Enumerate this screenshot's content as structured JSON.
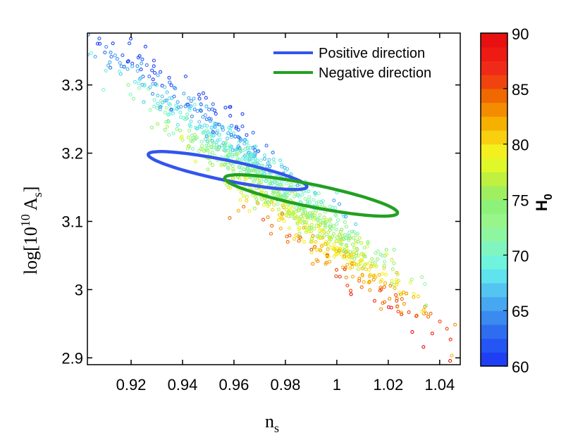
{
  "chart_data": {
    "type": "scatter",
    "title": "",
    "xlabel": "n",
    "xlabel_sub": "s",
    "ylabel_prefix": "log[10",
    "ylabel_sup": "10",
    "ylabel_main": " A",
    "ylabel_sub": "s",
    "ylabel_suffix": "]",
    "xlim": [
      0.903,
      1.048
    ],
    "ylim": [
      2.89,
      3.376
    ],
    "xticks": [
      0.92,
      0.94,
      0.96,
      0.98,
      1,
      1.02,
      1.04
    ],
    "xtick_labels": [
      "0.92",
      "0.94",
      "0.96",
      "0.98",
      "1",
      "1.02",
      "1.04"
    ],
    "yticks": [
      2.9,
      3,
      3.1,
      3.2,
      3.3
    ],
    "ytick_labels": [
      "2.9",
      "3",
      "3.1",
      "3.2",
      "3.3"
    ],
    "legend": [
      {
        "label": "Positive direction",
        "color": "#3355ee"
      },
      {
        "label": "Negative direction",
        "color": "#22a022"
      }
    ],
    "ellipses": [
      {
        "name": "Positive direction",
        "center": [
          0.9575,
          3.1745
        ],
        "semi_axes": [
          0.0399,
          0.0116
        ],
        "angle_deg": -41.5,
        "color": "#3355ee"
      },
      {
        "name": "Negative direction",
        "center": [
          0.99,
          3.138
        ],
        "semi_axes": [
          0.0434,
          0.0129
        ],
        "angle_deg": -41.5,
        "color": "#22a022"
      }
    ],
    "scatter": {
      "description_points": 1200,
      "trend": {
        "x0": 0.975,
        "y0": 3.15,
        "slope": -3.1
      },
      "h0_range": [
        60,
        90
      ]
    },
    "colorbar": {
      "title": "H",
      "title_sub": "0",
      "min": 60,
      "max": 90,
      "ticks": [
        60,
        65,
        70,
        75,
        80,
        85,
        90
      ],
      "tick_labels": [
        "60",
        "65",
        "70",
        "75",
        "80",
        "85",
        "90"
      ],
      "colors": [
        "#1f3ff5",
        "#2555f2",
        "#2f6df0",
        "#3a8af0",
        "#47a7f0",
        "#54c5f0",
        "#5fe3ef",
        "#6ff3dd",
        "#80f5c0",
        "#8ff6a0",
        "#98f58a",
        "#8cf27a",
        "#9fef60",
        "#c0f040",
        "#e0f828",
        "#f4f020",
        "#f8d010",
        "#f5b000",
        "#f48c00",
        "#f06800",
        "#f04410",
        "#f02a18",
        "#ee1a14",
        "#e81010"
      ]
    }
  }
}
